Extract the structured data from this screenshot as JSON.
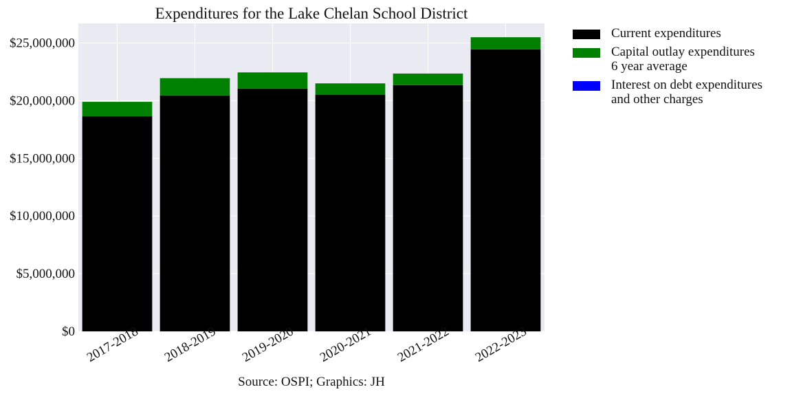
{
  "chart_data": {
    "type": "bar",
    "stacked": true,
    "title": "Expenditures for the Lake Chelan School District",
    "xlabel": "Source: OSPI; Graphics: JH",
    "ylabel": "",
    "ylim": [
      0,
      26700000
    ],
    "y_ticks": [
      0,
      5000000,
      10000000,
      15000000,
      20000000,
      25000000
    ],
    "y_tick_labels": [
      "$0",
      "$5,000,000",
      "$10,000,000",
      "$15,000,000",
      "$20,000,000",
      "$25,000,000"
    ],
    "categories": [
      "2017-2018",
      "2018-2019",
      "2019-2020",
      "2020-2021",
      "2021-2022",
      "2022-2023"
    ],
    "series": [
      {
        "name": "Current expenditures",
        "color": "#000000",
        "values": [
          18650000,
          20450000,
          21050000,
          20500000,
          21350000,
          24450000
        ]
      },
      {
        "name": "Capital outlay expenditures 6 year average",
        "color": "#008000",
        "values": [
          1250000,
          1500000,
          1400000,
          1000000,
          1000000,
          1050000
        ]
      },
      {
        "name": "Interest on debt expenditures and other charges",
        "color": "#0000ff",
        "values": [
          0,
          0,
          0,
          0,
          0,
          0
        ]
      }
    ],
    "grid": true,
    "legend_position": "outside-right"
  },
  "legend": [
    {
      "lines": [
        "Current expenditures"
      ],
      "color": "#000000"
    },
    {
      "lines": [
        "Capital outlay expenditures",
        "6 year average"
      ],
      "color": "#008000"
    },
    {
      "lines": [
        "Interest on debt expenditures",
        "and other charges"
      ],
      "color": "#0000ff"
    }
  ]
}
